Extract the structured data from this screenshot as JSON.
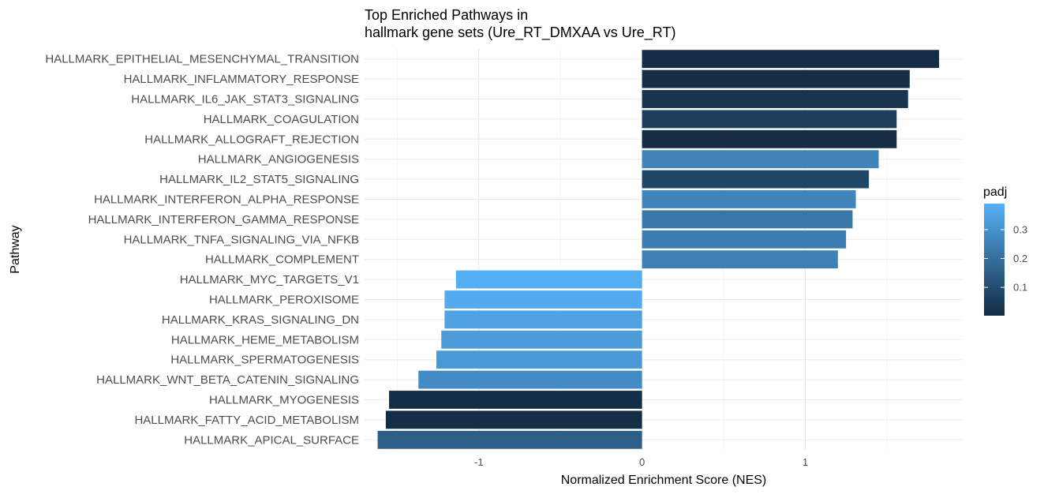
{
  "chart_data": {
    "type": "bar",
    "orientation": "horizontal",
    "title": "Top Enriched Pathways in\nhallmark gene sets (Ure_RT_DMXAA vs Ure_RT)",
    "xlabel": "Normalized Enrichment Score (NES)",
    "ylabel": "Pathway",
    "xlim": [
      -1.7,
      1.96
    ],
    "xticks": [
      -1,
      0,
      1
    ],
    "grid": true,
    "legend": {
      "title": "padj",
      "position": "right",
      "ticks": [
        0.1,
        0.2,
        0.3
      ],
      "range": [
        0.002,
        0.39
      ],
      "color_low": "#132B43",
      "color_high": "#56B1F7"
    },
    "categories": [
      "HALLMARK_EPITHELIAL_MESENCHYMAL_TRANSITION",
      "HALLMARK_INFLAMMATORY_RESPONSE",
      "HALLMARK_IL6_JAK_STAT3_SIGNALING",
      "HALLMARK_COAGULATION",
      "HALLMARK_ALLOGRAFT_REJECTION",
      "HALLMARK_ANGIOGENESIS",
      "HALLMARK_IL2_STAT5_SIGNALING",
      "HALLMARK_INTERFERON_ALPHA_RESPONSE",
      "HALLMARK_INTERFERON_GAMMA_RESPONSE",
      "HALLMARK_TNFA_SIGNALING_VIA_NFKB",
      "HALLMARK_COMPLEMENT",
      "HALLMARK_MYC_TARGETS_V1",
      "HALLMARK_PEROXISOME",
      "HALLMARK_KRAS_SIGNALING_DN",
      "HALLMARK_HEME_METABOLISM",
      "HALLMARK_SPERMATOGENESIS",
      "HALLMARK_WNT_BETA_CATENIN_SIGNALING",
      "HALLMARK_MYOGENESIS",
      "HALLMARK_FATTY_ACID_METABOLISM",
      "HALLMARK_APICAL_SURFACE"
    ],
    "values": [
      1.82,
      1.64,
      1.63,
      1.56,
      1.56,
      1.45,
      1.39,
      1.31,
      1.29,
      1.25,
      1.2,
      -1.14,
      -1.21,
      -1.21,
      -1.23,
      -1.26,
      -1.37,
      -1.55,
      -1.57,
      -1.62
    ],
    "padj": [
      0.005,
      0.01,
      0.03,
      0.06,
      0.005,
      0.26,
      0.08,
      0.26,
      0.22,
      0.24,
      0.25,
      0.38,
      0.37,
      0.35,
      0.33,
      0.32,
      0.28,
      0.01,
      0.01,
      0.15
    ]
  }
}
